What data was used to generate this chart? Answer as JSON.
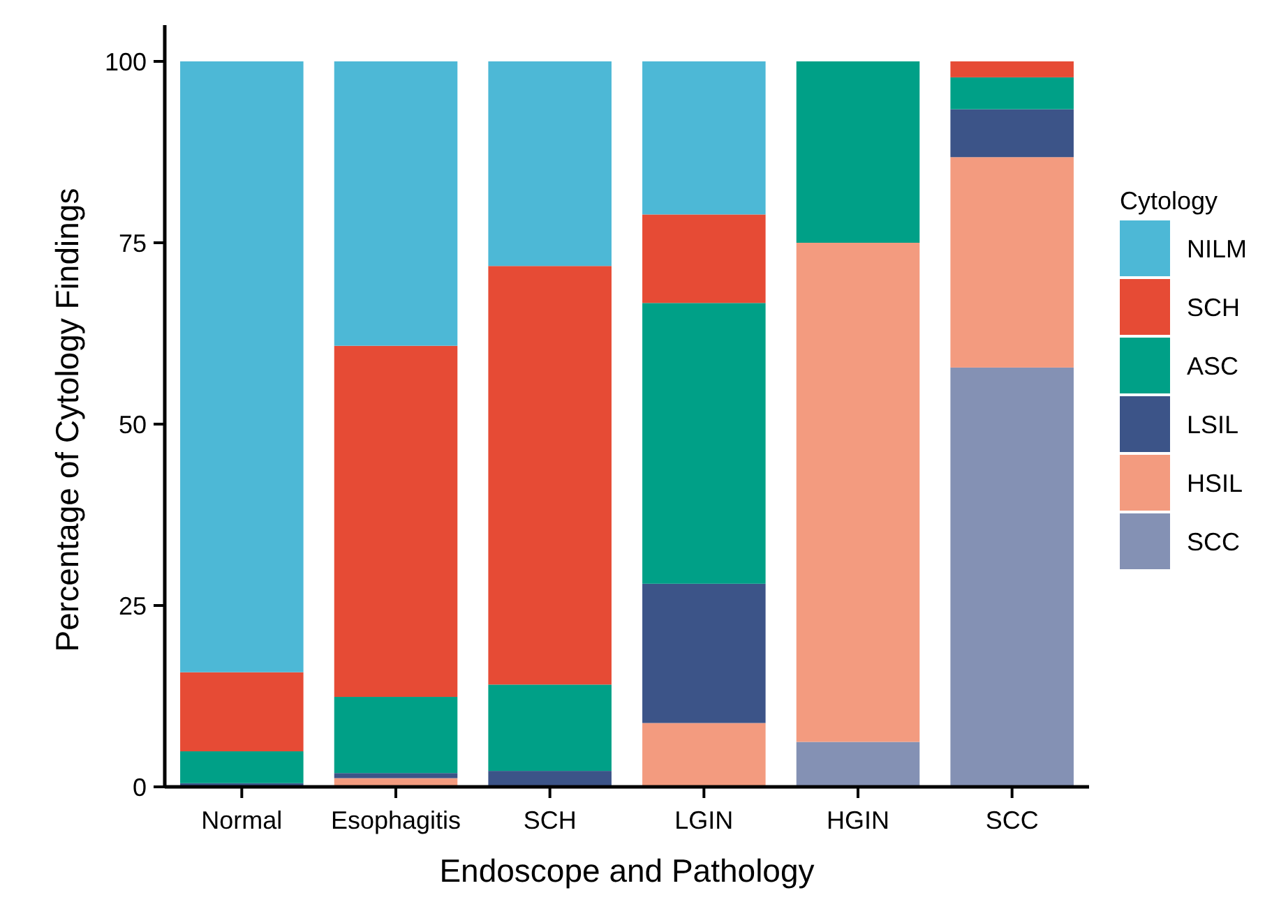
{
  "chart_data": {
    "type": "bar",
    "stacked": true,
    "xlabel": "Endoscope and Pathology",
    "ylabel": "Percentage of Cytology Findings",
    "legend_title": "Cytology",
    "legend": "right",
    "categories": [
      "Normal",
      "Esophagitis",
      "SCH",
      "LGIN",
      "HGIN",
      "SCC"
    ],
    "ylim": [
      0,
      105
    ],
    "yticks": [
      0,
      25,
      50,
      75,
      100
    ],
    "grid": false,
    "series": [
      {
        "name": "SCC",
        "color": "#8491b4",
        "values": [
          0,
          0,
          0,
          0,
          6.2,
          57.8
        ]
      },
      {
        "name": "HSIL",
        "color": "#f39b7f",
        "values": [
          0,
          1.2,
          0,
          8.8,
          68.8,
          29
        ]
      },
      {
        "name": "LSIL",
        "color": "#3c5488",
        "values": [
          0.5,
          0.7,
          2.2,
          19.2,
          0,
          6.6
        ]
      },
      {
        "name": "ASC",
        "color": "#00a087",
        "values": [
          4.4,
          10.5,
          11.9,
          38.7,
          25,
          4.4
        ]
      },
      {
        "name": "SCH",
        "color": "#e64b35",
        "values": [
          10.9,
          48.4,
          57.7,
          12.2,
          0,
          2.2
        ]
      },
      {
        "name": "NILM",
        "color": "#4db8d6",
        "values": [
          84.2,
          39.2,
          28.2,
          21.1,
          0,
          0
        ]
      }
    ]
  }
}
